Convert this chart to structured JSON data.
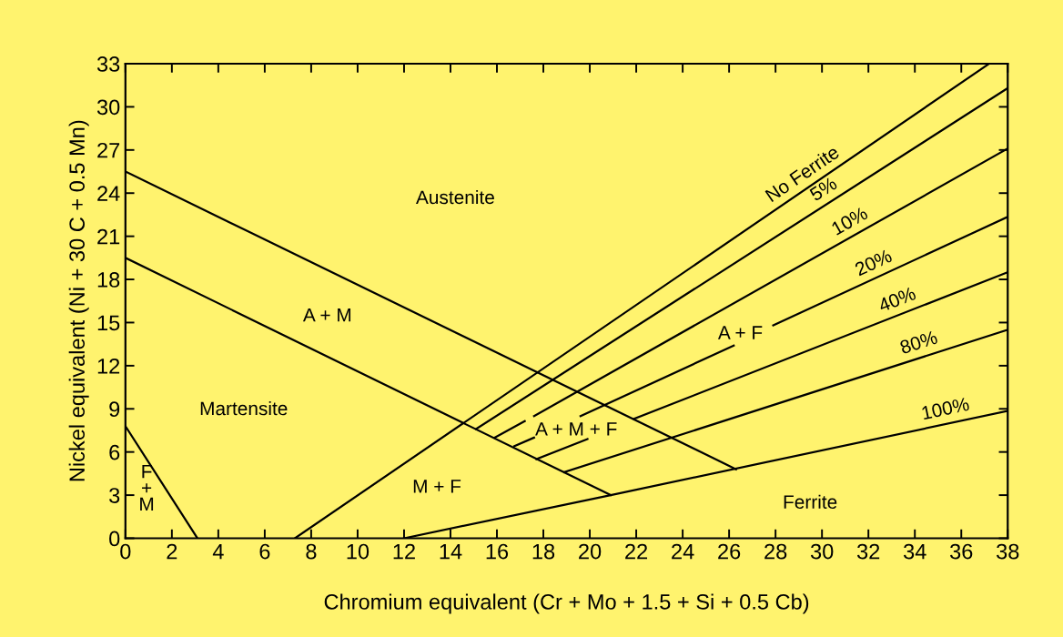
{
  "chart_data": {
    "type": "line",
    "xlabel": "Chromium equivalent (Cr + Mo + 1.5 + Si + 0.5 Cb)",
    "ylabel": "Nickel equivalent (Ni + 30 C + 0.5 Mn)",
    "xlim": [
      0,
      38
    ],
    "ylim": [
      0,
      33
    ],
    "xticks": [
      0,
      2,
      4,
      6,
      8,
      10,
      12,
      14,
      16,
      18,
      20,
      22,
      24,
      26,
      28,
      30,
      32,
      34,
      36,
      38
    ],
    "yticks": [
      0,
      3,
      6,
      9,
      12,
      15,
      18,
      21,
      24,
      27,
      30,
      33
    ],
    "series": [
      {
        "color": "#000000",
        "x": [
          0,
          3.1
        ],
        "values": [
          7.8,
          0
        ]
      },
      {
        "color": "#000000",
        "x": [
          0,
          20.9
        ],
        "values": [
          19.5,
          3.0
        ]
      },
      {
        "color": "#000000",
        "x": [
          0,
          26.3
        ],
        "values": [
          25.5,
          4.8
        ]
      },
      {
        "name": "No Ferrite",
        "color": "#000000",
        "x": [
          7.3,
          37.2
        ],
        "values": [
          0,
          33
        ]
      },
      {
        "name": "5%",
        "color": "#000000",
        "x": [
          15.1,
          38
        ],
        "values": [
          7.6,
          31.3
        ]
      },
      {
        "name": "10%",
        "color": "#000000",
        "x": [
          15.9,
          17.2,
          17.4,
          17.6,
          38
        ],
        "values": [
          7.0,
          8.15,
          null,
          8.5,
          27.1
        ]
      },
      {
        "name": "20%",
        "color": "#000000",
        "x": [
          16.75,
          17.6,
          18.6,
          19.6,
          26.2,
          27,
          27.9,
          38
        ],
        "values": [
          6.4,
          7.0,
          null,
          8.5,
          13.4,
          null,
          14.8,
          22.35
        ]
      },
      {
        "name": "40%",
        "color": "#000000",
        "x": [
          17.7,
          19.9,
          20.9,
          21.9,
          38
        ],
        "values": [
          5.5,
          6.9,
          null,
          8.3,
          18.5
        ]
      },
      {
        "name": "80%",
        "color": "#000000",
        "x": [
          18.9,
          38
        ],
        "values": [
          4.6,
          14.5
        ]
      },
      {
        "name": "100%",
        "color": "#000000",
        "x": [
          12,
          20.9,
          38
        ],
        "values": [
          0,
          3.0,
          8.85
        ]
      }
    ],
    "annotations": [
      "Austenite",
      "A + M",
      "Martensite",
      "F\n+\nM",
      "M + F",
      "A + M + F",
      "A + F",
      "Ferrite"
    ]
  }
}
